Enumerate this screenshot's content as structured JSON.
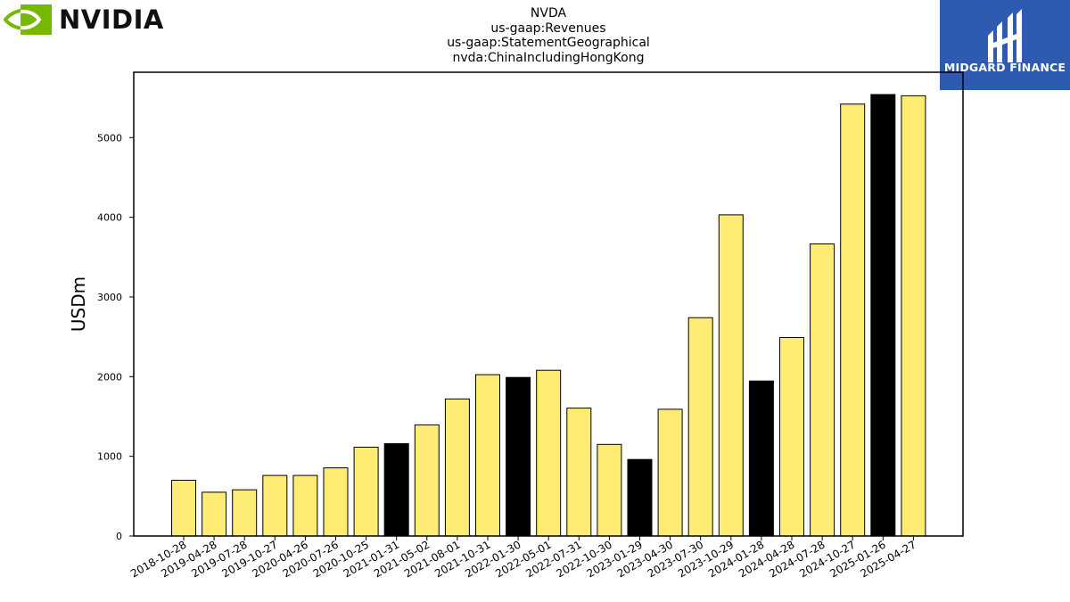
{
  "header": {
    "brand": "NVIDIA",
    "title_lines": [
      "NVDA",
      "us-gaap:Revenues",
      "us-gaap:StatementGeographical",
      "nvda:ChinaIncludingHongKong"
    ],
    "watermark": "MIDGARD FINANCE"
  },
  "colors": {
    "bar_default": "#fdeb74",
    "bar_highlight": "#000000",
    "brand_green": "#76b900",
    "watermark_bg": "#2e5bb0"
  },
  "chart_data": {
    "type": "bar",
    "ylabel": "USDm",
    "xlabel": "",
    "ylim": [
      0,
      5820
    ],
    "yticks": [
      0,
      1000,
      2000,
      3000,
      4000,
      5000
    ],
    "grid": false,
    "categories": [
      "2018-10-28",
      "2019-04-28",
      "2019-07-28",
      "2019-10-27",
      "2020-04-26",
      "2020-07-26",
      "2020-10-25",
      "2021-01-31",
      "2021-05-02",
      "2021-08-01",
      "2021-10-31",
      "2022-01-30",
      "2022-05-01",
      "2022-07-31",
      "2022-10-30",
      "2023-01-29",
      "2023-04-30",
      "2023-07-30",
      "2023-10-29",
      "2024-01-28",
      "2024-04-28",
      "2024-07-28",
      "2024-10-27",
      "2025-01-26",
      "2025-04-27"
    ],
    "values": [
      700,
      550,
      580,
      760,
      760,
      855,
      1115,
      1160,
      1395,
      1720,
      2025,
      1990,
      2080,
      1605,
      1150,
      960,
      1590,
      2740,
      4030,
      1945,
      2490,
      3665,
      5420,
      5540,
      5525
    ],
    "highlighted": [
      false,
      false,
      false,
      false,
      false,
      false,
      false,
      true,
      false,
      false,
      false,
      true,
      false,
      false,
      false,
      true,
      false,
      false,
      false,
      true,
      false,
      false,
      false,
      true,
      false
    ]
  }
}
